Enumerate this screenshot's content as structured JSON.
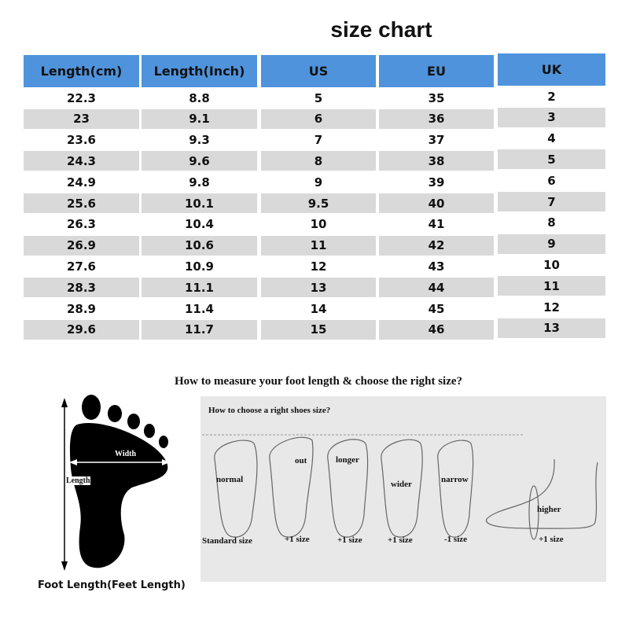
{
  "title": "size chart",
  "table": {
    "headers": [
      "Length(cm)",
      "Length(Inch)",
      "US",
      "EU",
      "UK"
    ],
    "rows": [
      [
        "22.3",
        "8.8",
        "5",
        "35",
        "2"
      ],
      [
        "23",
        "9.1",
        "6",
        "36",
        "3"
      ],
      [
        "23.6",
        "9.3",
        "7",
        "37",
        "4"
      ],
      [
        "24.3",
        "9.6",
        "8",
        "38",
        "5"
      ],
      [
        "24.9",
        "9.8",
        "9",
        "39",
        "6"
      ],
      [
        "25.6",
        "10.1",
        "9.5",
        "40",
        "7"
      ],
      [
        "26.3",
        "10.4",
        "10",
        "41",
        "8"
      ],
      [
        "26.9",
        "10.6",
        "11",
        "42",
        "9"
      ],
      [
        "27.6",
        "10.9",
        "12",
        "43",
        "10"
      ],
      [
        "28.3",
        "11.1",
        "13",
        "44",
        "11"
      ],
      [
        "28.9",
        "11.4",
        "14",
        "45",
        "12"
      ],
      [
        "29.6",
        "11.7",
        "15",
        "46",
        "13"
      ]
    ]
  },
  "colors": {
    "header": "#4f93dc",
    "stripe": "#d9d9d9"
  },
  "measure": {
    "title": "How to measure your foot length & choose the right size?",
    "width_label": "Width",
    "length_label": "Length",
    "caption": "Foot Length(Feet Length)"
  },
  "choose": {
    "title": "How to choose a right shoes size?",
    "feet": [
      {
        "label": "normal",
        "size": "Standard size"
      },
      {
        "label": "out",
        "size": "+1 size"
      },
      {
        "label": "longer",
        "size": "+1 size"
      },
      {
        "label": "wider",
        "size": "+1 size"
      },
      {
        "label": "narrow",
        "size": "-1 size"
      },
      {
        "label": "higher",
        "size": "+1 size"
      }
    ]
  }
}
